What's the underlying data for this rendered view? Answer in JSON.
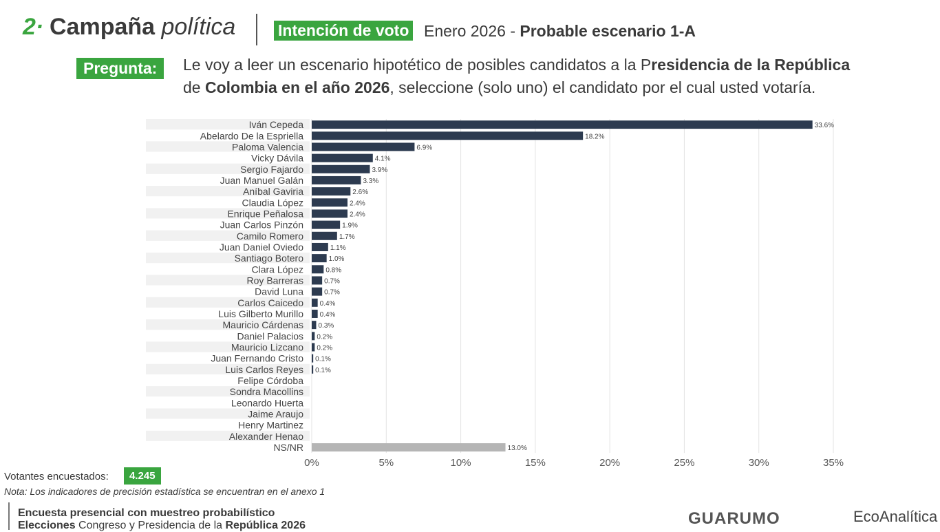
{
  "header": {
    "number": "2·",
    "section_bold": "Campaña",
    "section_italic": "política",
    "tag": "Intención de voto",
    "subtitle_plain": "Enero 2026 - ",
    "subtitle_bold": "Probable escenario 1-A"
  },
  "question": {
    "label": "Pregunta:",
    "t1": "Le voy a leer un escenario hipotético de posibles candidatos a la P",
    "t2": "residencia de la República",
    "t3": "de ",
    "t4": "Colombia en el año 2026",
    "t5": ", seleccione (solo uno) el candidato por el cual usted votaría."
  },
  "chart_data": {
    "type": "bar",
    "orientation": "horizontal",
    "categories": [
      "Iván Cepeda",
      "Abelardo De la Espriella",
      "Paloma Valencia",
      "Vicky Dávila",
      "Sergio Fajardo",
      "Juan Manuel Galán",
      "Aníbal Gaviria",
      "Claudia López",
      "Enrique Peñalosa",
      "Juan Carlos Pinzón",
      "Camilo Romero",
      "Juan Daniel Oviedo",
      "Santiago Botero",
      "Clara López",
      "Roy Barreras",
      "David Luna",
      "Carlos Caicedo",
      "Luis Gilberto Murillo",
      "Mauricio Cárdenas",
      "Daniel Palacios",
      "Mauricio Lizcano",
      "Juan Fernando Cristo",
      "Luis Carlos Reyes",
      "Felipe Córdoba",
      "Sondra Macollins",
      "Leonardo Huerta",
      "Jaime Araujo",
      "Henry Martinez",
      "Alexander Henao",
      "NS/NR"
    ],
    "values": [
      33.6,
      18.2,
      6.9,
      4.1,
      3.9,
      3.3,
      2.6,
      2.4,
      2.4,
      1.9,
      1.7,
      1.1,
      1.0,
      0.8,
      0.7,
      0.7,
      0.4,
      0.4,
      0.3,
      0.2,
      0.2,
      0.1,
      0.1,
      null,
      null,
      null,
      null,
      null,
      null,
      13.0
    ],
    "labels": [
      "33.6%",
      "18.2%",
      "6.9%",
      "4.1%",
      "3.9%",
      "3.3%",
      "2.6%",
      "2.4%",
      "2.4%",
      "1.9%",
      "1.7%",
      "1.1%",
      "1.0%",
      "0.8%",
      "0.7%",
      "0.7%",
      "0.4%",
      "0.4%",
      "0.3%",
      "0.2%",
      "0.2%",
      "0.1%",
      "0.1%",
      "",
      "",
      "",
      "",
      "",
      "",
      "13.0%"
    ],
    "xticks": [
      "0%",
      "5%",
      "10%",
      "15%",
      "20%",
      "25%",
      "30%",
      "35%"
    ],
    "xlim": [
      0,
      35
    ],
    "grid": true,
    "colors": {
      "bar": "#2d3b50",
      "nsnr": "#b5b5b5"
    }
  },
  "footer": {
    "voters_label": "Votantes encuestados:",
    "voters": "4.245",
    "note": "Nota: Los indicadores de precisión estadística se encuentran en el anexo 1",
    "line1": "Encuesta presencial con muestreo probabilístico",
    "line2a": "Elecciones ",
    "line2b": "Congreso y Presidencia de la ",
    "line2c": "República 2026",
    "logo1": "GUARUMO",
    "logo2": "EcoAnalítica"
  }
}
